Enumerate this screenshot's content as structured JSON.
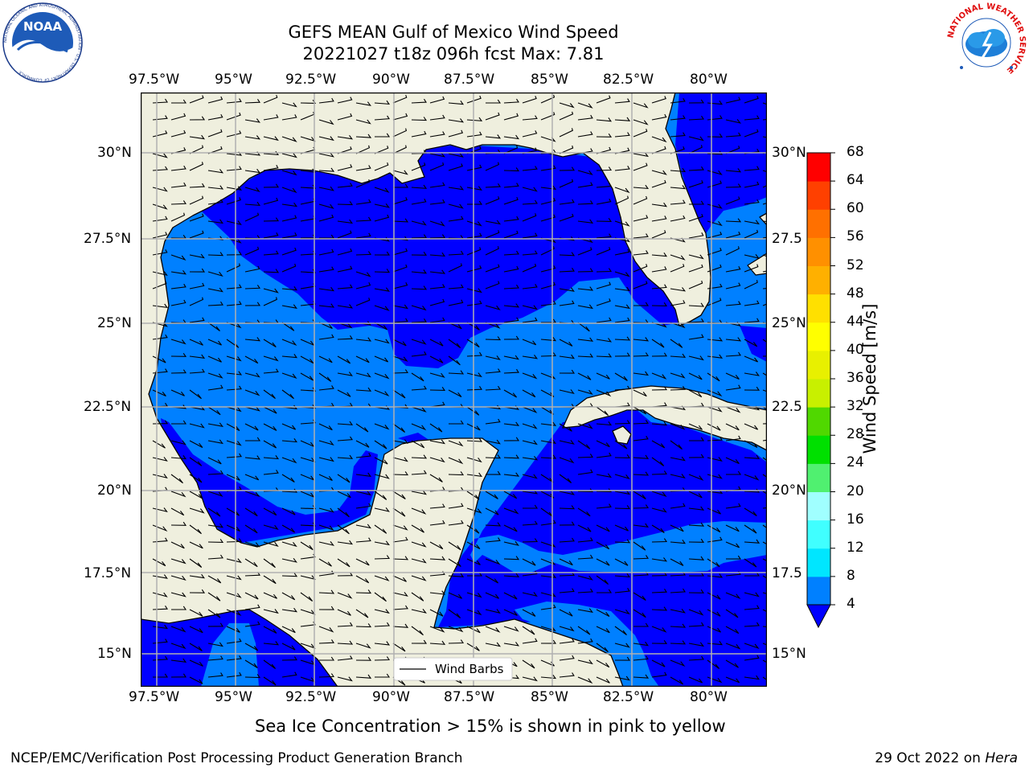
{
  "title": {
    "line1": "GEFS MEAN Gulf of Mexico Wind Speed",
    "line2": "20221027 t18z 096h fcst   Max: 7.81"
  },
  "logos": {
    "left": "NOAA",
    "left_ring_text": "NATIONAL OCEANIC AND ATMOSPHERIC ADMINISTRATION · U.S. DEPARTMENT OF COMMERCE",
    "right_ring_text": "NATIONAL WEATHER SERVICE"
  },
  "map": {
    "lon_ticks": [
      "97.5°W",
      "95°W",
      "92.5°W",
      "90°W",
      "87.5°W",
      "85°W",
      "82.5°W",
      "80°W"
    ],
    "lat_ticks": [
      "30°N",
      "27.5°N",
      "25°N",
      "22.5°N",
      "20°N",
      "17.5°N",
      "15°N"
    ],
    "lat_ticks_right": [
      "30°N",
      "27.5",
      "25°N",
      "22.5",
      "20°N",
      "17.5",
      "15°N"
    ],
    "extent": {
      "lon_min": -98,
      "lon_max": -78.2,
      "lat_min": 14.0,
      "lat_max": 31.6
    },
    "legend_label": "Wind Barbs",
    "colors": {
      "land": "#efefde",
      "band_4_8": "#0080ff",
      "band_lt4": "#0000ff",
      "grid": "#b0b0b0"
    }
  },
  "colorbar": {
    "label": "Wind Speed [m/s]",
    "levels": [
      4,
      8,
      12,
      16,
      20,
      24,
      28,
      32,
      36,
      40,
      44,
      48,
      52,
      56,
      60,
      64,
      68
    ],
    "colors": [
      "#0080ff",
      "#00e6ff",
      "#40ffff",
      "#a0ffff",
      "#50f070",
      "#00e000",
      "#50d800",
      "#c8f000",
      "#e8f000",
      "#ffff00",
      "#ffe000",
      "#ffb000",
      "#ff9000",
      "#ff7000",
      "#ff4000",
      "#ff0000"
    ],
    "extend_color": "#0000ff"
  },
  "caption": "Sea Ice Concentration > 15% is shown in pink to yellow",
  "footer": {
    "left": "NCEP/EMC/Verification Post Processing Product Generation Branch",
    "right_prefix": "29 Oct 2022 on ",
    "right_host": "Hera"
  }
}
